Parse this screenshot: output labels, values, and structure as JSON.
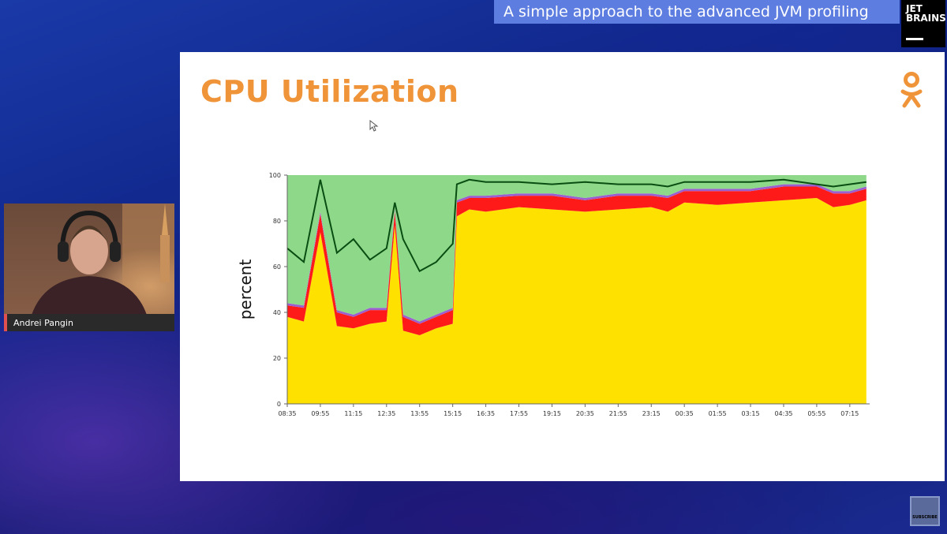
{
  "banner": {
    "text": "A simple approach to the advanced JVM profiling"
  },
  "brand": {
    "line1": "JET",
    "line2": "BRAINS"
  },
  "slide": {
    "title": "CPU Utilization",
    "title_color": "#f0943a",
    "logo_icon": "odnoklassniki-logo-icon"
  },
  "speaker": {
    "name": "Andrei Pangin"
  },
  "subscribe": {
    "label": "SUBSCRIBE"
  },
  "colors": {
    "user": "#ffe100",
    "system": "#ff1a1a",
    "other": "#9b5fd0",
    "idle": "#8ed88a",
    "total_line": "#0a4d12"
  },
  "chart_data": {
    "type": "area",
    "ylabel": "percent",
    "xlabel": "",
    "ylim": [
      0,
      100
    ],
    "yticks": [
      0,
      20,
      40,
      60,
      80,
      100
    ],
    "xtick_labels": [
      "08:35",
      "09:55",
      "11:15",
      "12:35",
      "13:55",
      "15:15",
      "16:35",
      "17:55",
      "19:15",
      "20:35",
      "21:55",
      "23:15",
      "00:35",
      "01:55",
      "03:15",
      "04:35",
      "05:55",
      "07:15"
    ],
    "x": [
      "08:35",
      "09:15",
      "09:55",
      "10:35",
      "11:15",
      "11:55",
      "12:35",
      "12:55",
      "13:15",
      "13:55",
      "14:35",
      "15:15",
      "15:25",
      "15:55",
      "16:35",
      "17:55",
      "19:15",
      "20:35",
      "21:55",
      "23:15",
      "23:55",
      "00:35",
      "01:55",
      "03:15",
      "04:35",
      "05:55",
      "06:35",
      "07:15",
      "07:55"
    ],
    "series": [
      {
        "values": [
          38,
          36,
          75,
          34,
          33,
          35,
          36,
          78,
          32,
          30,
          33,
          35,
          82,
          85,
          84,
          86,
          85,
          84,
          85,
          86,
          84,
          88,
          87,
          88,
          89,
          90,
          86,
          87,
          89
        ]
      },
      {
        "values": [
          5,
          6,
          8,
          6,
          5,
          6,
          5,
          6,
          6,
          5,
          5,
          6,
          6,
          5,
          6,
          5,
          6,
          5,
          6,
          5,
          6,
          5,
          6,
          5,
          6,
          5,
          6,
          5,
          5
        ]
      },
      {
        "values": [
          1,
          1,
          1,
          1,
          1,
          1,
          1,
          1,
          1,
          1,
          1,
          1,
          1,
          1,
          1,
          1,
          1,
          1,
          1,
          1,
          1,
          1,
          1,
          1,
          1,
          1,
          1,
          1,
          1
        ]
      },
      {
        "values": [
          56,
          57,
          16,
          59,
          61,
          58,
          58,
          15,
          61,
          64,
          61,
          58,
          11,
          9,
          9,
          8,
          8,
          10,
          8,
          8,
          9,
          6,
          6,
          6,
          4,
          4,
          7,
          7,
          5
        ]
      },
      {
        "values": [
          68,
          62,
          98,
          66,
          72,
          63,
          68,
          88,
          72,
          58,
          62,
          70,
          96,
          98,
          97,
          97,
          96,
          97,
          96,
          96,
          95,
          97,
          97,
          97,
          98,
          96,
          95,
          96,
          97
        ]
      }
    ]
  }
}
